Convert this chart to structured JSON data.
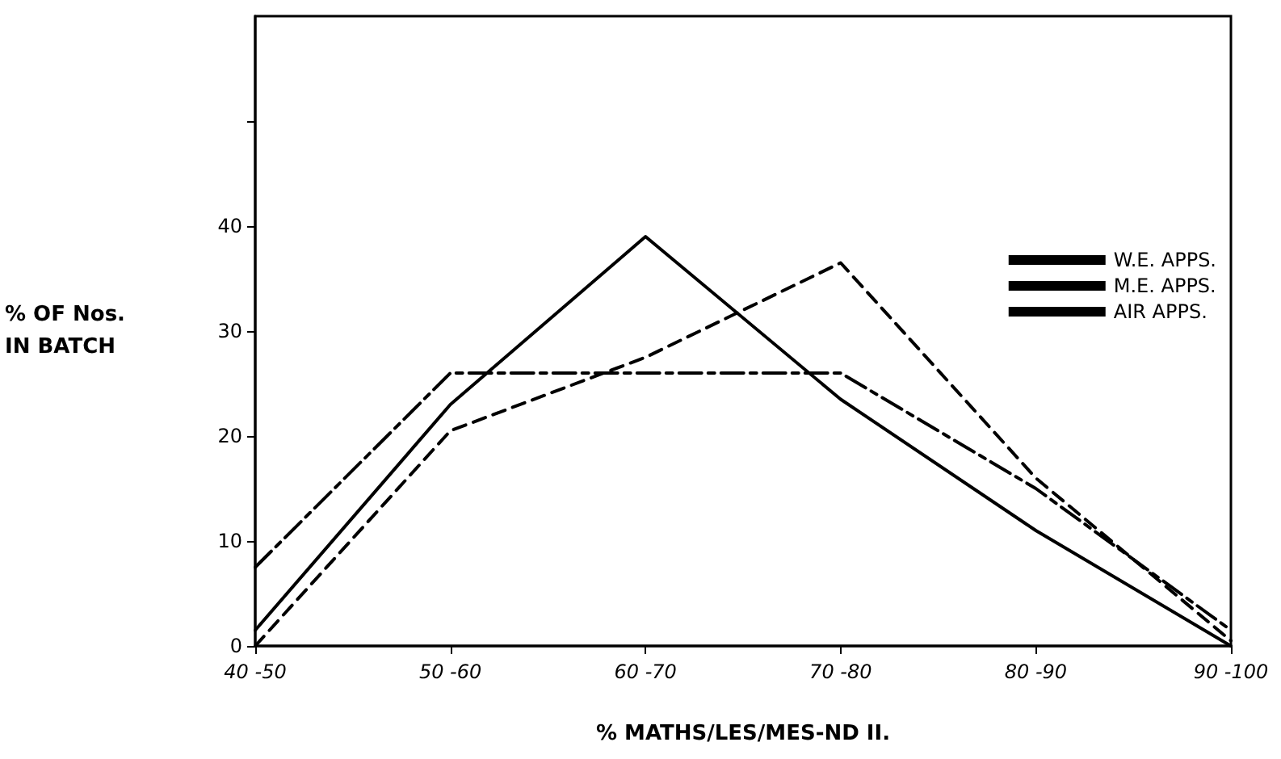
{
  "chart_data": {
    "type": "line",
    "xlabel": "% MATHS/LES/MES-ND II.",
    "ylabel": "% OF Nos.\nIN BATCH",
    "categories": [
      "40 -50",
      "50 -60",
      "60 -70",
      "70 -80",
      "80 -90",
      "90 -100"
    ],
    "series": [
      {
        "name": "W.E. APPS.",
        "color": "#000000",
        "line_style": "solid",
        "values": [
          1.5,
          23,
          39,
          23.5,
          11,
          0
        ]
      },
      {
        "name": "M.E. APPS.",
        "color": "#000000",
        "line_style": "dashdot",
        "values": [
          7.5,
          26,
          26,
          26,
          15,
          1.5
        ]
      },
      {
        "name": "AIR APPS.",
        "color": "#000000",
        "line_style": "dashed",
        "values": [
          0,
          20.5,
          27.5,
          36.5,
          16,
          0.5
        ]
      }
    ],
    "ylim": [
      0,
      60
    ],
    "yticks": [
      0,
      10,
      20,
      30,
      40,
      {
        "value": 50,
        "label": null
      }
    ],
    "grid": false,
    "legend": "top right",
    "marker": "none"
  }
}
